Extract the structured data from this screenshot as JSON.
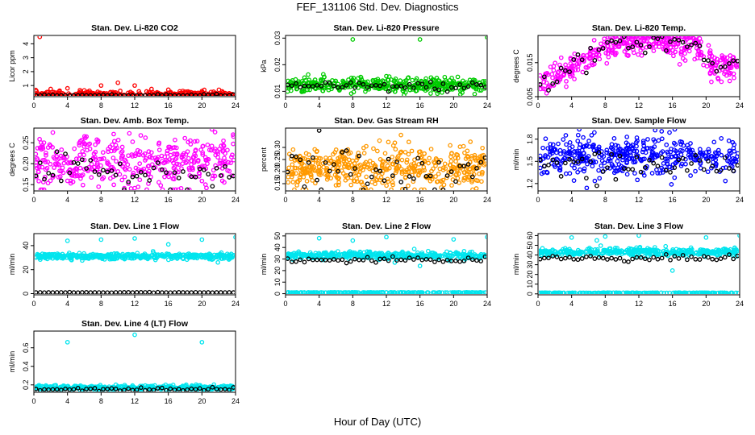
{
  "title": "FEF_131106  Std. Dev. Diagnostics",
  "xlabel": "Hour of Day (UTC)",
  "chart_data": [
    {
      "type": "scatter",
      "title": "Stan. Dev. Li-820 CO2",
      "ylabel": "Licor ppm",
      "xlim": [
        0,
        24
      ],
      "ylim": [
        0.2,
        4.6
      ],
      "xticks": [
        0,
        4,
        8,
        12,
        16,
        20,
        24
      ],
      "yticks": [
        1,
        2,
        3,
        4
      ],
      "series": [
        {
          "color": "#ff0000",
          "base": 0.35,
          "noise": 0.12,
          "count": 320,
          "outliers": [
            [
              0.7,
              4.5
            ],
            [
              2.0,
              0.75
            ],
            [
              4.0,
              0.8
            ],
            [
              6.0,
              0.65
            ],
            [
              8.0,
              1.0
            ],
            [
              10.0,
              1.2
            ],
            [
              12.0,
              1.0
            ],
            [
              14.0,
              0.75
            ],
            [
              16.0,
              0.7
            ],
            [
              18.0,
              0.55
            ],
            [
              20.0,
              0.6
            ]
          ]
        },
        {
          "color": "#000000",
          "base": 0.28,
          "noise": 0.05,
          "count": 48,
          "outliers": []
        }
      ]
    },
    {
      "type": "scatter",
      "title": "Stan. Dev. Li-820 Pressure",
      "ylabel": "kPa",
      "xlim": [
        0,
        24
      ],
      "ylim": [
        0.008,
        0.031
      ],
      "xticks": [
        0,
        4,
        8,
        12,
        16,
        20,
        24
      ],
      "yticks": [
        0.01,
        0.02,
        0.03
      ],
      "series": [
        {
          "color": "#00cc00",
          "base": 0.0123,
          "noise": 0.0013,
          "count": 420,
          "outliers": [
            [
              8.0,
              0.0295
            ],
            [
              16.0,
              0.0295
            ],
            [
              24.0,
              0.0303
            ],
            [
              12.0,
              0.0157
            ],
            [
              18.0,
              0.015
            ]
          ]
        },
        {
          "color": "#000000",
          "base": 0.0118,
          "noise": 0.0009,
          "count": 48,
          "outliers": []
        }
      ]
    },
    {
      "type": "scatter",
      "title": "Stan. Dev. Li-820 Temp.",
      "ylabel": "degrees C",
      "xlim": [
        0,
        24
      ],
      "ylim": [
        0.005,
        0.023
      ],
      "xticks": [
        0,
        4,
        8,
        12,
        16,
        20,
        24
      ],
      "yticks": [
        0.005,
        0.015
      ],
      "profile": [
        [
          0,
          0.009
        ],
        [
          4,
          0.013
        ],
        [
          7,
          0.018
        ],
        [
          10,
          0.0205
        ],
        [
          14,
          0.0215
        ],
        [
          18,
          0.0205
        ],
        [
          20,
          0.017
        ],
        [
          21,
          0.014
        ],
        [
          24,
          0.014
        ]
      ],
      "series": [
        {
          "color": "#ff00ff",
          "noise": 0.0022,
          "count": 420,
          "outliers": []
        },
        {
          "color": "#000000",
          "noise": 0.0015,
          "count": 48,
          "outliers": []
        }
      ]
    },
    {
      "type": "scatter",
      "title": "Stan. Dev. Amb. Box Temp.",
      "ylabel": "degrees C",
      "xlim": [
        0,
        24
      ],
      "ylim": [
        0.135,
        0.285
      ],
      "xticks": [
        0,
        4,
        8,
        12,
        16,
        20,
        24
      ],
      "yticks": [
        0.15,
        0.2,
        0.25
      ],
      "series": [
        {
          "color": "#ff00ff",
          "base": 0.205,
          "noise": 0.03,
          "count": 420,
          "outliers": []
        },
        {
          "color": "#000000",
          "base": 0.18,
          "noise": 0.018,
          "count": 48,
          "outliers": []
        }
      ]
    },
    {
      "type": "scatter",
      "title": "Stan. Dev. Gas Stream RH",
      "ylabel": "percent",
      "xlim": [
        0,
        24
      ],
      "ylim": [
        0.12,
        0.38
      ],
      "xticks": [
        0,
        4,
        8,
        12,
        16,
        20,
        24
      ],
      "yticks": [
        0.15,
        0.2,
        0.25,
        0.3
      ],
      "series": [
        {
          "color": "#ff9900",
          "base": 0.21,
          "noise": 0.045,
          "count": 480,
          "outliers": []
        },
        {
          "color": "#000000",
          "base": 0.2,
          "noise": 0.05,
          "count": 48,
          "outliers": [
            [
              4.0,
              0.37
            ]
          ]
        }
      ]
    },
    {
      "type": "scatter",
      "title": "Stan. Dev. Sample Flow",
      "ylabel": "ml/min",
      "xlim": [
        0,
        24
      ],
      "ylim": [
        1.1,
        1.95
      ],
      "xticks": [
        0,
        4,
        8,
        12,
        16,
        20,
        24
      ],
      "yticks": [
        1.2,
        1.5,
        1.8
      ],
      "series": [
        {
          "color": "#0000ff",
          "base": 1.58,
          "noise": 0.13,
          "count": 420,
          "outliers": []
        },
        {
          "color": "#000000",
          "base": 1.45,
          "noise": 0.08,
          "count": 48,
          "outliers": [
            [
              7.0,
              1.17
            ]
          ]
        }
      ]
    },
    {
      "type": "scatter",
      "title": "Stan. Dev. Line 1 Flow",
      "ylabel": "ml/min",
      "xlim": [
        0,
        24
      ],
      "ylim": [
        -1,
        50
      ],
      "xticks": [
        0,
        4,
        8,
        12,
        16,
        20,
        24
      ],
      "yticks": [
        0,
        20,
        40
      ],
      "series": [
        {
          "color": "#00e5ee",
          "base": 31,
          "noise": 1.2,
          "count": 420,
          "outliers": [
            [
              4.0,
              44
            ],
            [
              8.0,
              45
            ],
            [
              12.0,
              46
            ],
            [
              16.0,
              41
            ],
            [
              20.0,
              45
            ],
            [
              24.0,
              47
            ],
            [
              21.9,
              26
            ]
          ]
        },
        {
          "color": "#000000",
          "base": 1,
          "noise": 0.1,
          "count": 48,
          "outliers": []
        }
      ]
    },
    {
      "type": "scatter",
      "title": "Stan. Dev. Line 2 Flow",
      "ylabel": "ml/min",
      "xlim": [
        0,
        24
      ],
      "ylim": [
        -1,
        52
      ],
      "xticks": [
        0,
        4,
        8,
        12,
        16,
        20,
        24
      ],
      "yticks": [
        0,
        10,
        20,
        30,
        40,
        50
      ],
      "series": [
        {
          "color": "#00e5ee",
          "base": 33,
          "noise": 1.5,
          "count": 420,
          "outliers": [
            [
              4.0,
              48
            ],
            [
              8.0,
              46
            ],
            [
              12.0,
              49
            ],
            [
              16.0,
              24
            ],
            [
              20.0,
              47
            ],
            [
              24.0,
              49
            ],
            [
              13.0,
              27
            ]
          ]
        },
        {
          "color": "#00e5ee",
          "base": 1,
          "noise": 0.1,
          "count": 200,
          "outliers": []
        },
        {
          "color": "#000000",
          "base": 29,
          "noise": 1.2,
          "count": 48,
          "outliers": []
        }
      ]
    },
    {
      "type": "scatter",
      "title": "Stan. Dev. Line 3 Flow",
      "ylabel": "ml/min",
      "xlim": [
        0,
        24
      ],
      "ylim": [
        -1,
        62
      ],
      "xticks": [
        0,
        4,
        8,
        12,
        16,
        20,
        24
      ],
      "yticks": [
        0,
        10,
        20,
        30,
        40,
        50,
        60
      ],
      "series": [
        {
          "color": "#00e5ee",
          "base": 43,
          "noise": 2.0,
          "count": 420,
          "outliers": [
            [
              4.0,
              58
            ],
            [
              8.0,
              59
            ],
            [
              12.0,
              60
            ],
            [
              16.0,
              24
            ],
            [
              20.0,
              58
            ],
            [
              24.0,
              60
            ],
            [
              7.0,
              55
            ]
          ]
        },
        {
          "color": "#00e5ee",
          "base": 1,
          "noise": 0.1,
          "count": 200,
          "outliers": []
        },
        {
          "color": "#000000",
          "base": 37,
          "noise": 1.5,
          "count": 48,
          "outliers": []
        }
      ]
    },
    {
      "type": "scatter",
      "title": "Stan. Dev. Line 4 (LT) Flow",
      "ylabel": "ml/min",
      "xlim": [
        0,
        24
      ],
      "ylim": [
        0.12,
        0.78
      ],
      "xticks": [
        0,
        4,
        8,
        12,
        16,
        20,
        24
      ],
      "yticks": [
        0.2,
        0.4,
        0.6
      ],
      "series": [
        {
          "color": "#00e5ee",
          "base": 0.17,
          "noise": 0.012,
          "count": 420,
          "outliers": [
            [
              4.0,
              0.66
            ],
            [
              12.0,
              0.74
            ],
            [
              20.0,
              0.66
            ]
          ]
        },
        {
          "color": "#000000",
          "base": 0.155,
          "noise": 0.01,
          "count": 48,
          "outliers": []
        }
      ]
    }
  ]
}
